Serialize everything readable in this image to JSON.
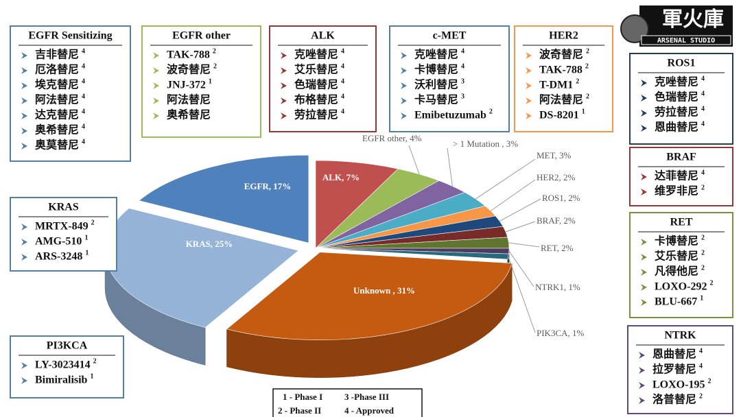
{
  "chart_data": {
    "type": "pie3d",
    "values": [
      7,
      4,
      3,
      3,
      2,
      2,
      2,
      2,
      1,
      1,
      31,
      25,
      17
    ],
    "value_labels": [
      "ALK, 7%",
      "EGFR other, 4%",
      "> 1 Mutation , 3%",
      "MET, 3%",
      "HER2, 2%",
      "ROS1, 2%",
      "BRAF, 2%",
      "RET, 2%",
      "NTRK1, 1%",
      "PIK3CA, 1%",
      "Unknown , 31%",
      "KRAS, 25%",
      "EGFR, 17%"
    ],
    "colors": [
      "#c0504d",
      "#9bbb59",
      "#8064a2",
      "#4bacc6",
      "#f79646",
      "#1f497d",
      "#772c2a",
      "#5f7530",
      "#4d3b62",
      "#276a7c",
      "#c55a11",
      "#95b3d7",
      "#4f81bd"
    ]
  },
  "boxes": [
    {
      "title": "EGFR Sensitizing",
      "color": "#4f7fa8",
      "items": [
        {
          "name": "吉非替尼",
          "phase": 4
        },
        {
          "name": "厄洛替尼",
          "phase": 4
        },
        {
          "name": "埃克替尼",
          "phase": 4
        },
        {
          "name": "阿法替尼",
          "phase": 4
        },
        {
          "name": "达克替尼",
          "phase": 4
        },
        {
          "name": "奥希替尼",
          "phase": 4
        },
        {
          "name": "奥莫替尼",
          "phase": 4
        }
      ]
    },
    {
      "title": "EGFR other",
      "color": "#9bbb59",
      "items": [
        {
          "name": "TAK-788",
          "phase": 2
        },
        {
          "name": "波奇替尼",
          "phase": 2
        },
        {
          "name": "JNJ-372",
          "phase": 1
        },
        {
          "name": "阿法替尼"
        },
        {
          "name": "奥希替尼"
        }
      ]
    },
    {
      "title": "ALK",
      "color": "#953735",
      "items": [
        {
          "name": "克唑替尼",
          "phase": 4
        },
        {
          "name": "艾乐替尼",
          "phase": 4
        },
        {
          "name": "色瑞替尼",
          "phase": 4
        },
        {
          "name": "布格替尼",
          "phase": 4
        },
        {
          "name": "劳拉替尼",
          "phase": 4
        }
      ]
    },
    {
      "title": "c-MET",
      "color": "#4f7fa8",
      "items": [
        {
          "name": "克唑替尼",
          "phase": 4
        },
        {
          "name": "卡博替尼",
          "phase": 4
        },
        {
          "name": "沃利替尼",
          "phase": 3
        },
        {
          "name": "卡马替尼",
          "phase": 3
        },
        {
          "name": "Emibetuzumab",
          "phase": 2
        }
      ]
    },
    {
      "title": "HER2",
      "color": "#f79646",
      "items": [
        {
          "name": "波奇替尼",
          "phase": 2
        },
        {
          "name": "TAK-788",
          "phase": 2
        },
        {
          "name": "T-DM1",
          "phase": 2
        },
        {
          "name": "阿法替尼",
          "phase": 2
        },
        {
          "name": "DS-8201",
          "phase": 1
        }
      ]
    },
    {
      "title": "ROS1",
      "color": "#1f3a5a",
      "items": [
        {
          "name": "克唑替尼",
          "phase": 4
        },
        {
          "name": "色瑞替尼",
          "phase": 4
        },
        {
          "name": "劳拉替尼",
          "phase": 4
        },
        {
          "name": "恩曲替尼",
          "phase": 4
        }
      ]
    },
    {
      "title": "BRAF",
      "color": "#953735",
      "items": [
        {
          "name": "达菲替尼",
          "phase": 4
        },
        {
          "name": "维罗非尼",
          "phase": 2
        }
      ]
    },
    {
      "title": "RET",
      "color": "#76923c",
      "items": [
        {
          "name": "卡博替尼",
          "phase": 2
        },
        {
          "name": "艾乐替尼",
          "phase": 2
        },
        {
          "name": "凡得他尼",
          "phase": 2
        },
        {
          "name": "LOXO-292",
          "phase": 2
        },
        {
          "name": "BLU-667",
          "phase": 1
        }
      ]
    },
    {
      "title": "NTRK",
      "color": "#5f497a",
      "items": [
        {
          "name": "恩曲替尼",
          "phase": 4
        },
        {
          "name": "拉罗替尼",
          "phase": 4
        },
        {
          "name": "LOXO-195",
          "phase": 2
        },
        {
          "name": "洛普替尼",
          "phase": 2
        }
      ]
    },
    {
      "title": "KRAS",
      "color": "#4f7fa8",
      "items": [
        {
          "name": "MRTX-849",
          "phase": 2
        },
        {
          "name": "AMG-510",
          "phase": 1
        },
        {
          "name": "ARS-3248",
          "phase": 1
        }
      ]
    },
    {
      "title": "PI3KCA",
      "color": "#4f7fa8",
      "items": [
        {
          "name": "LY-3023414",
          "phase": 2
        },
        {
          "name": "Bimiralisib",
          "phase": 1
        }
      ]
    }
  ],
  "phase_key": [
    "1 - Phase I",
    "3 -Phase III",
    "2 - Phase II",
    "4 - Approved"
  ],
  "logo": {
    "name": "軍火庫",
    "subtitle": "ARSENAL STUDIO"
  }
}
